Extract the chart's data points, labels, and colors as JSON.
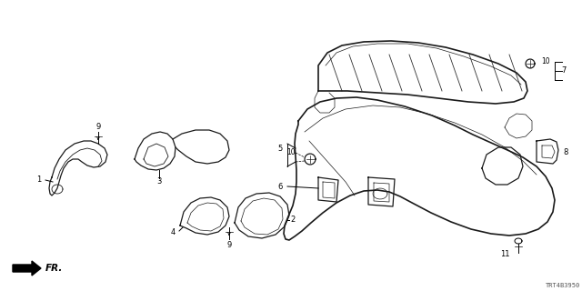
{
  "bg_color": "#ffffff",
  "line_color": "#1a1a1a",
  "fig_width": 6.4,
  "fig_height": 3.2,
  "dpi": 100,
  "diagram_id": "TRT4B3950"
}
